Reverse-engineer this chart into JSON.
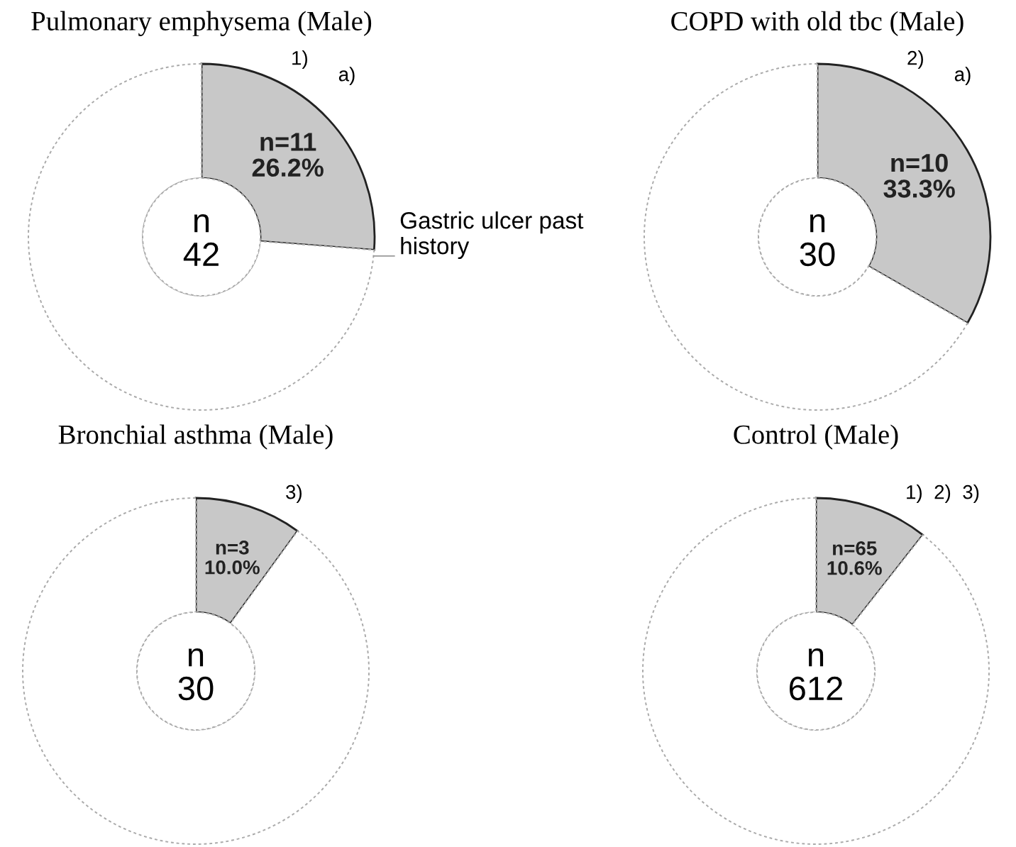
{
  "chart_data": [
    {
      "type": "donut",
      "title": "Pulmonary emphysema (Male)",
      "categories": [
        "Gastric ulcer past history",
        null
      ],
      "values": [
        26.2,
        73.8
      ],
      "colors": [
        "#c8c8c8",
        "#ffffff"
      ],
      "value_labels": [
        "n=11\n26.2%",
        null
      ],
      "annotations": [
        "n\n42",
        "1)",
        "a)"
      ]
    },
    {
      "type": "donut",
      "title": "COPD with old tbc (Male)",
      "categories": [
        null,
        null
      ],
      "values": [
        33.3,
        66.7
      ],
      "colors": [
        "#c8c8c8",
        "#ffffff"
      ],
      "value_labels": [
        "n=10\n33.3%",
        null
      ],
      "annotations": [
        "n\n30",
        "2)",
        "a)"
      ]
    },
    {
      "type": "donut",
      "title": "Bronchial asthma (Male)",
      "categories": [
        null,
        null
      ],
      "values": [
        10.0,
        90.0
      ],
      "colors": [
        "#c8c8c8",
        "#ffffff"
      ],
      "value_labels": [
        "n=3\n10.0%",
        null
      ],
      "annotations": [
        "n\n30",
        "3)"
      ]
    },
    {
      "type": "donut",
      "title": "Control (Male)",
      "categories": [
        null,
        null
      ],
      "values": [
        10.6,
        89.4
      ],
      "colors": [
        "#c8c8c8",
        "#ffffff"
      ],
      "value_labels": [
        "n=65\n10.6%",
        null
      ],
      "annotations": [
        "n\n612",
        "1)  2)  3)"
      ]
    }
  ]
}
